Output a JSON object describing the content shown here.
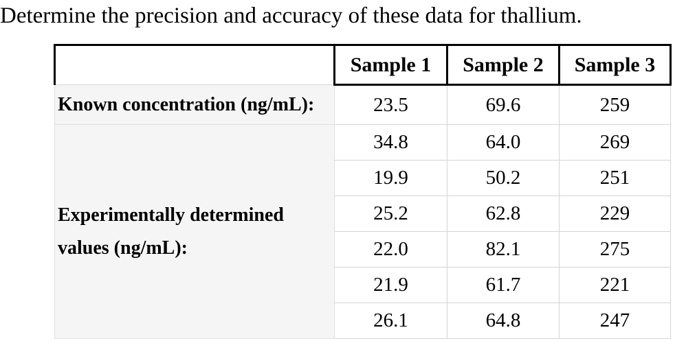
{
  "question": "Determine the precision and accuracy of these data for thallium.",
  "table": {
    "column_headers": [
      "Sample 1",
      "Sample 2",
      "Sample 3"
    ],
    "known_concentration": {
      "label": "Known concentration (ng/mL):",
      "values": [
        "23.5",
        "69.6",
        "259"
      ]
    },
    "experimental": {
      "label_line1": "Experimentally determined",
      "label_line2": "values (ng/mL):",
      "rows": [
        [
          "34.8",
          "64.0",
          "269"
        ],
        [
          "19.9",
          "50.2",
          "251"
        ],
        [
          "25.2",
          "62.8",
          "229"
        ],
        [
          "22.0",
          "82.1",
          "275"
        ],
        [
          "21.9",
          "61.7",
          "221"
        ],
        [
          "26.1",
          "64.8",
          "247"
        ]
      ]
    }
  },
  "colors": {
    "header_border": "#000000",
    "body_border": "#d4d4d4",
    "label_background": "#f5f5f5",
    "text": "#000000",
    "page_background": "#ffffff"
  }
}
